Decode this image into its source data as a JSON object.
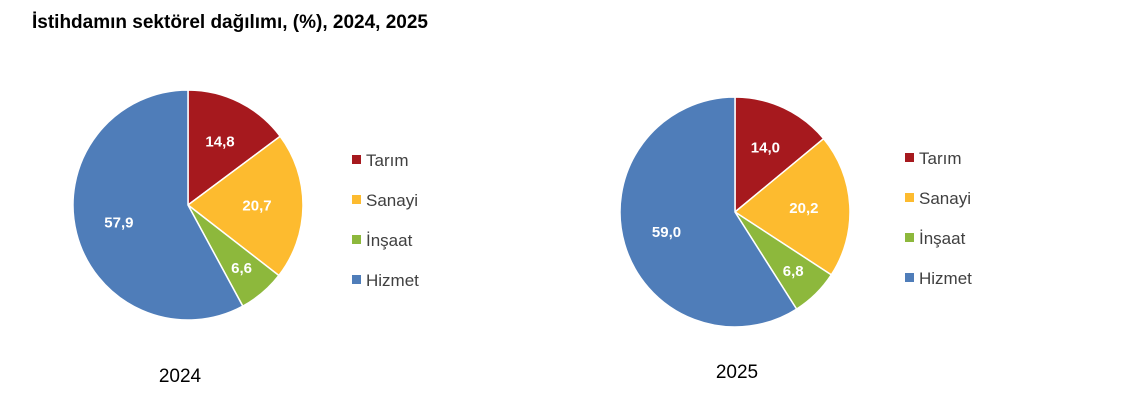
{
  "title": "İstihdamın sektörel dağılımı, (%), 2024, 2025",
  "chart_data": [
    {
      "type": "pie",
      "year_label": "2024",
      "categories": [
        "Tarım",
        "Sanayi",
        "İnşaat",
        "Hizmet"
      ],
      "values": [
        14.8,
        20.7,
        6.6,
        57.9
      ],
      "value_labels": [
        "14,8",
        "20,7",
        "6,6",
        "57,9"
      ],
      "colors": [
        "#A6191E",
        "#FDBB2F",
        "#8DB83C",
        "#4F7DB9"
      ],
      "legend_position": "right",
      "start": "top, clockwise"
    },
    {
      "type": "pie",
      "year_label": "2025",
      "categories": [
        "Tarım",
        "Sanayi",
        "İnşaat",
        "Hizmet"
      ],
      "values": [
        14.0,
        20.2,
        6.8,
        59.0
      ],
      "value_labels": [
        "14,0",
        "20,2",
        "6,8",
        "59,0"
      ],
      "colors": [
        "#A6191E",
        "#FDBB2F",
        "#8DB83C",
        "#4F7DB9"
      ],
      "legend_position": "right",
      "start": "top, clockwise"
    }
  ]
}
